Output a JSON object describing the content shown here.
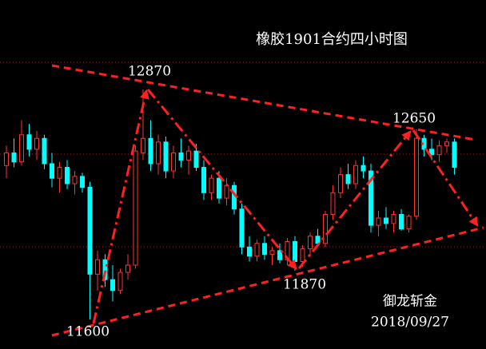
{
  "chart_data": {
    "type": "candlestick",
    "title": "橡胶1901合约四小时图",
    "annotations": [
      "12870",
      "11600",
      "11870",
      "12650"
    ],
    "watermark": "御龙斩金",
    "date": "2018/09/27",
    "up_color": "#ff3232",
    "down_color": "#00ffff",
    "ylim": [
      11437,
      13364
    ],
    "ohlc": [
      [
        12450,
        12560,
        12380,
        12520
      ],
      [
        12520,
        12600,
        12440,
        12470
      ],
      [
        12470,
        12700,
        12450,
        12620
      ],
      [
        12620,
        12680,
        12500,
        12540
      ],
      [
        12540,
        12640,
        12480,
        12600
      ],
      [
        12600,
        12620,
        12430,
        12460
      ],
      [
        12460,
        12520,
        12330,
        12380
      ],
      [
        12380,
        12470,
        12300,
        12440
      ],
      [
        12440,
        12480,
        12320,
        12350
      ],
      [
        12350,
        12420,
        12290,
        12390
      ],
      [
        12390,
        12410,
        12300,
        12330
      ],
      [
        12330,
        12360,
        11600,
        11850
      ],
      [
        11850,
        11980,
        11760,
        11930
      ],
      [
        11930,
        11960,
        11780,
        11820
      ],
      [
        11820,
        11900,
        11700,
        11760
      ],
      [
        11760,
        11880,
        11740,
        11860
      ],
      [
        11860,
        11960,
        11820,
        11900
      ],
      [
        11900,
        12560,
        11880,
        12530
      ],
      [
        12520,
        12870,
        12480,
        12600
      ],
      [
        12600,
        12700,
        12420,
        12460
      ],
      [
        12460,
        12620,
        12400,
        12580
      ],
      [
        12580,
        12610,
        12380,
        12420
      ],
      [
        12420,
        12560,
        12380,
        12520
      ],
      [
        12520,
        12600,
        12440,
        12480
      ],
      [
        12480,
        12560,
        12400,
        12530
      ],
      [
        12530,
        12570,
        12420,
        12440
      ],
      [
        12440,
        12480,
        12260,
        12300
      ],
      [
        12300,
        12400,
        12260,
        12380
      ],
      [
        12380,
        12420,
        12240,
        12270
      ],
      [
        12270,
        12380,
        12230,
        12340
      ],
      [
        12340,
        12360,
        12180,
        12210
      ],
      [
        12210,
        12240,
        11960,
        12000
      ],
      [
        12000,
        12060,
        11920,
        11950
      ],
      [
        11950,
        12040,
        11920,
        12020
      ],
      [
        12020,
        12060,
        11930,
        11960
      ],
      [
        11960,
        12000,
        11900,
        11980
      ],
      [
        11980,
        12020,
        11910,
        11930
      ],
      [
        11930,
        12050,
        11900,
        12030
      ],
      [
        12030,
        12060,
        11870,
        11920
      ],
      [
        11920,
        12010,
        11890,
        11990
      ],
      [
        11990,
        12080,
        11950,
        12060
      ],
      [
        12060,
        12100,
        12000,
        12020
      ],
      [
        12020,
        12200,
        12000,
        12180
      ],
      [
        12180,
        12340,
        12150,
        12300
      ],
      [
        12300,
        12440,
        12270,
        12400
      ],
      [
        12400,
        12460,
        12320,
        12350
      ],
      [
        12350,
        12480,
        12320,
        12450
      ],
      [
        12450,
        12500,
        12380,
        12420
      ],
      [
        12420,
        12460,
        12080,
        12120
      ],
      [
        12120,
        12200,
        12060,
        12160
      ],
      [
        12160,
        12220,
        12100,
        12130
      ],
      [
        12130,
        12200,
        12080,
        12180
      ],
      [
        12180,
        12210,
        12090,
        12100
      ],
      [
        12100,
        12180,
        12080,
        12170
      ],
      [
        12170,
        12650,
        12150,
        12600
      ],
      [
        12600,
        12620,
        12500,
        12540
      ],
      [
        12540,
        12600,
        12480,
        12510
      ],
      [
        12510,
        12590,
        12470,
        12560
      ],
      [
        12560,
        12600,
        12520,
        12580
      ],
      [
        12580,
        12600,
        12400,
        12440
      ]
    ]
  }
}
